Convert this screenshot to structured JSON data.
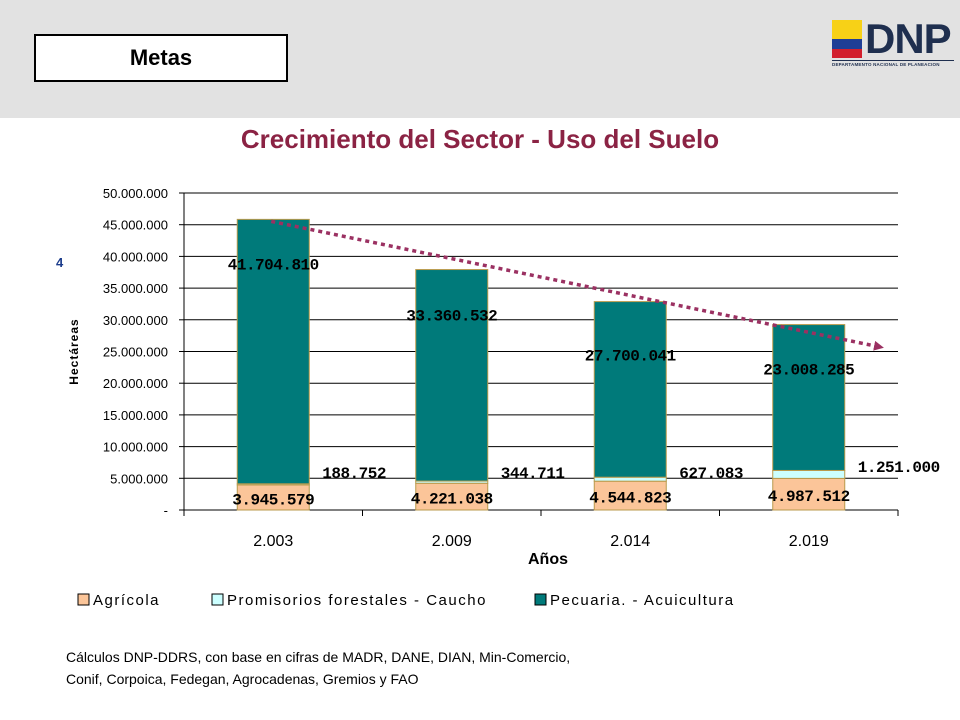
{
  "header": {
    "section_label": "Metas",
    "logo": {
      "name": "dnp-logo",
      "word": "DNP",
      "caption": "DEPARTAMENTO NACIONAL DE PLANEACION"
    }
  },
  "title": "Crecimiento del Sector - Uso del Suelo",
  "side_mark": "4",
  "source_lines": [
    "Cálculos DNP-DDRS, con base en cifras de MADR, DANE, DIAN, Min-Comercio,",
    "Conif, Corpoica, Fedegan, Agrocadenas, Gremios y FAO"
  ],
  "colors": {
    "title": "#8b2344",
    "agricola": "#fbc599",
    "forestales": "#ccffff",
    "pecuaria": "#007a7a",
    "bar_border": "#b89a4c",
    "trend": "#9b3162"
  },
  "chart_data": {
    "type": "bar",
    "stacked": true,
    "xlabel": "Años",
    "ylabel": "Hectáreas",
    "ylim": [
      0,
      50000000
    ],
    "yticks": [
      "-",
      "5.000.000",
      "10.000.000",
      "15.000.000",
      "20.000.000",
      "25.000.000",
      "30.000.000",
      "35.000.000",
      "40.000.000",
      "45.000.000",
      "50.000.000"
    ],
    "grid": true,
    "legend_position": "bottom",
    "categories": [
      "2.003",
      "2.009",
      "2.014",
      "2.019"
    ],
    "series": [
      {
        "name": "Agrícola",
        "values": [
          3945579,
          4221038,
          4544823,
          4987512
        ],
        "labels": [
          "3.945.579",
          "4.221.038",
          "4.544.823",
          "4.987.512"
        ]
      },
      {
        "name": "Promisorios forestales - Caucho",
        "values": [
          188752,
          344711,
          627083,
          1251000
        ],
        "labels": [
          "188.752",
          "344.711",
          "627.083",
          "1.251.000"
        ]
      },
      {
        "name": "Pecuaria. - Acuicultura",
        "values": [
          41704810,
          33360532,
          27700041,
          23008285
        ],
        "labels": [
          "41.704.810",
          "33.360.532",
          "27.700.041",
          "23.008.285"
        ]
      }
    ],
    "annotations": [
      {
        "type": "trend-arrow",
        "style": "dotted",
        "direction": "descending"
      }
    ]
  }
}
